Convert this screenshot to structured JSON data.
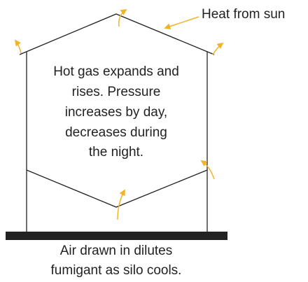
{
  "annotation": "Heat from sun",
  "inside_text": [
    "Hot gas expands and",
    "rises. Pressure",
    "increases by day,",
    "decreases during",
    "the night."
  ],
  "caption": [
    "Air drawn in dilutes",
    "fumigant as silo cools."
  ]
}
